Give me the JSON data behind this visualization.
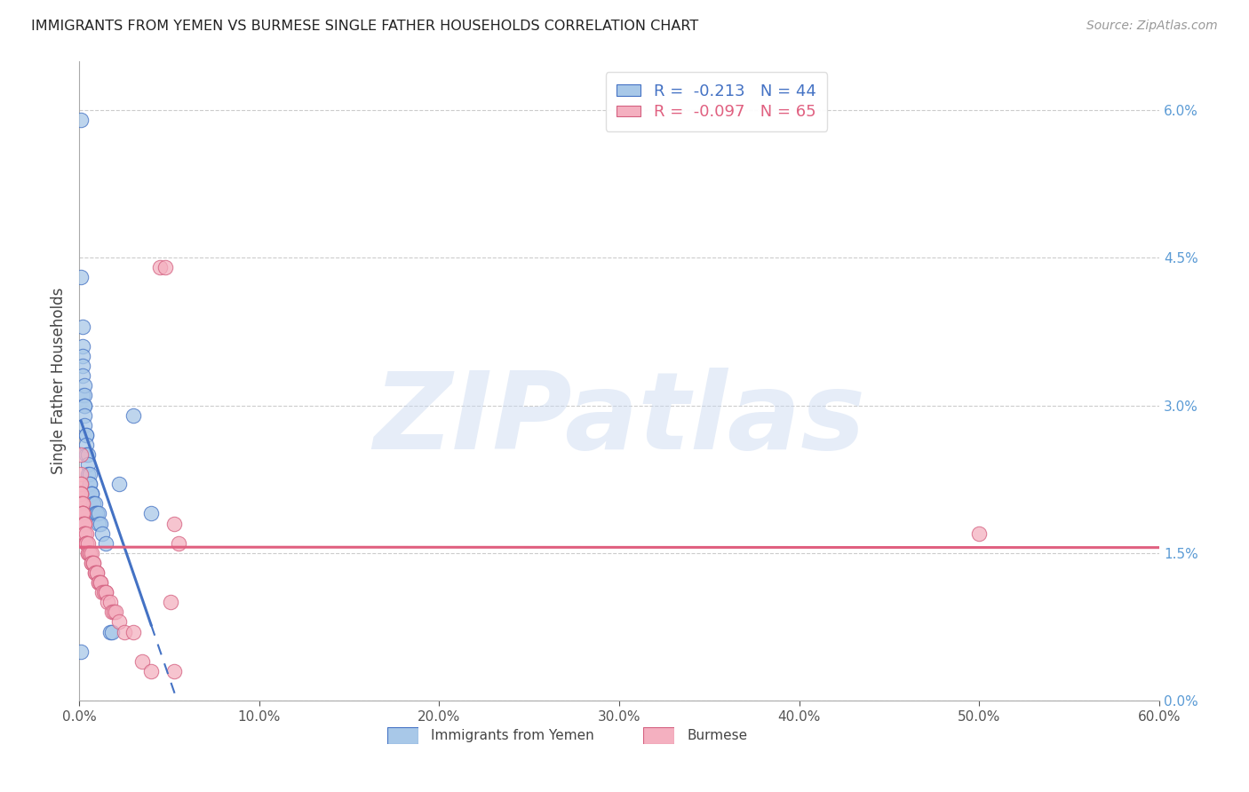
{
  "title": "IMMIGRANTS FROM YEMEN VS BURMESE SINGLE FATHER HOUSEHOLDS CORRELATION CHART",
  "source": "Source: ZipAtlas.com",
  "ylabel": "Single Father Households",
  "watermark": "ZIPatlas",
  "xlim": [
    0.0,
    60.0
  ],
  "ylim": [
    0.0,
    6.5
  ],
  "xtick_vals": [
    0.0,
    10.0,
    20.0,
    30.0,
    40.0,
    50.0,
    60.0
  ],
  "xticklabels": [
    "0.0%",
    "10.0%",
    "20.0%",
    "30.0%",
    "40.0%",
    "50.0%",
    "60.0%"
  ],
  "ytick_right_vals": [
    0.0,
    1.5,
    3.0,
    4.5,
    6.0
  ],
  "ytick_right_labels": [
    "0.0%",
    "1.5%",
    "3.0%",
    "4.5%",
    "6.0%"
  ],
  "legend_blue_label": "Immigrants from Yemen",
  "legend_pink_label": "Burmese",
  "R_blue": "-0.213",
  "N_blue": 44,
  "R_pink": "-0.097",
  "N_pink": 65,
  "blue_face_color": "#A8C8E8",
  "blue_edge_color": "#4472C4",
  "pink_face_color": "#F4B0C0",
  "pink_edge_color": "#D46080",
  "blue_line_color": "#4472C4",
  "pink_line_color": "#E06080",
  "right_axis_color": "#5B9BD5",
  "grid_color": "#CCCCCC",
  "blue_scatter_x": [
    0.1,
    0.1,
    0.2,
    0.2,
    0.2,
    0.2,
    0.2,
    0.2,
    0.3,
    0.3,
    0.3,
    0.3,
    0.3,
    0.3,
    0.4,
    0.4,
    0.4,
    0.4,
    0.5,
    0.5,
    0.5,
    0.6,
    0.6,
    0.6,
    0.7,
    0.7,
    0.7,
    0.8,
    0.8,
    0.9,
    0.9,
    1.0,
    1.0,
    1.1,
    1.1,
    1.2,
    1.3,
    1.5,
    1.7,
    1.8,
    2.2,
    3.0,
    4.0,
    0.1
  ],
  "blue_scatter_y": [
    5.9,
    4.3,
    3.8,
    3.6,
    3.5,
    3.4,
    3.3,
    3.1,
    3.2,
    3.1,
    3.0,
    3.0,
    2.9,
    2.8,
    2.7,
    2.7,
    2.6,
    2.5,
    2.5,
    2.4,
    2.3,
    2.3,
    2.2,
    2.2,
    2.1,
    2.1,
    2.1,
    2.0,
    2.0,
    2.0,
    1.9,
    1.9,
    1.9,
    1.9,
    1.8,
    1.8,
    1.7,
    1.6,
    0.7,
    0.7,
    2.2,
    2.9,
    1.9,
    0.5
  ],
  "pink_scatter_x": [
    0.1,
    0.1,
    0.1,
    0.1,
    0.1,
    0.1,
    0.1,
    0.1,
    0.2,
    0.2,
    0.2,
    0.2,
    0.2,
    0.2,
    0.2,
    0.3,
    0.3,
    0.3,
    0.3,
    0.3,
    0.3,
    0.4,
    0.4,
    0.4,
    0.4,
    0.4,
    0.5,
    0.5,
    0.5,
    0.6,
    0.6,
    0.7,
    0.7,
    0.7,
    0.8,
    0.8,
    0.9,
    0.9,
    1.0,
    1.0,
    1.1,
    1.1,
    1.2,
    1.2,
    1.3,
    1.4,
    1.5,
    1.5,
    1.6,
    1.7,
    1.8,
    1.9,
    2.0,
    2.2,
    2.5,
    3.0,
    3.5,
    4.0,
    4.5,
    4.8,
    5.1,
    5.3,
    5.5,
    5.3,
    50.0
  ],
  "pink_scatter_y": [
    2.5,
    2.3,
    2.2,
    2.2,
    2.1,
    2.1,
    2.1,
    2.0,
    2.0,
    2.0,
    1.9,
    1.9,
    1.9,
    1.9,
    1.8,
    1.8,
    1.8,
    1.8,
    1.7,
    1.7,
    1.7,
    1.7,
    1.6,
    1.6,
    1.6,
    1.6,
    1.6,
    1.5,
    1.5,
    1.5,
    1.5,
    1.5,
    1.4,
    1.4,
    1.4,
    1.4,
    1.3,
    1.3,
    1.3,
    1.3,
    1.2,
    1.2,
    1.2,
    1.2,
    1.1,
    1.1,
    1.1,
    1.1,
    1.0,
    1.0,
    0.9,
    0.9,
    0.9,
    0.8,
    0.7,
    0.7,
    0.4,
    0.3,
    4.4,
    4.4,
    1.0,
    1.8,
    1.6,
    0.3,
    1.7
  ],
  "blue_solid_x_end": 4.0,
  "blue_dash_x_end": 60.0
}
